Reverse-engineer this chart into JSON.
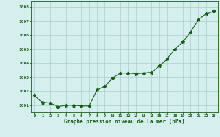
{
  "x": [
    0,
    1,
    2,
    3,
    4,
    5,
    6,
    7,
    8,
    9,
    10,
    11,
    12,
    13,
    14,
    15,
    16,
    17,
    18,
    19,
    20,
    21,
    22,
    23
  ],
  "y": [
    1001.7,
    1001.2,
    1001.15,
    1000.9,
    1001.0,
    1001.0,
    1000.95,
    1000.95,
    1002.1,
    1002.35,
    1002.95,
    1003.3,
    1003.3,
    1003.25,
    1003.3,
    1003.35,
    1003.8,
    1004.3,
    1005.0,
    1005.5,
    1006.2,
    1007.1,
    1007.5,
    1007.7
  ],
  "ylim": [
    1000.5,
    1008.4
  ],
  "yticks": [
    1001,
    1002,
    1003,
    1004,
    1005,
    1006,
    1007,
    1008
  ],
  "xtick_labels": [
    "0",
    "1",
    "2",
    "3",
    "4",
    "5",
    "6",
    "7",
    "8",
    "9",
    "10",
    "11",
    "12",
    "13",
    "14",
    "15",
    "16",
    "17",
    "18",
    "19",
    "20",
    "21",
    "22",
    "23"
  ],
  "xlabel": "Graphe pression niveau de la mer (hPa)",
  "line_color": "#1a5c1a",
  "marker": "*",
  "bg_color": "#d5eeee",
  "grid_color": "#aacccc",
  "label_color": "#1a5c1a",
  "tick_color": "#1a5c1a",
  "axis_color": "#1a5c1a"
}
